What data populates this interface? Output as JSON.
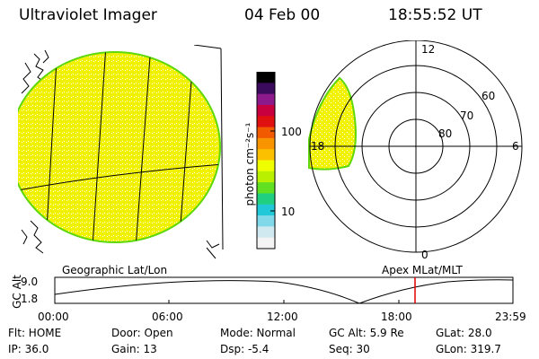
{
  "header": {
    "instrument": "Ultraviolet Imager",
    "date": "04 Feb 00",
    "time": "18:55:52 UT"
  },
  "colorbar": {
    "unit_label": "photon cm⁻²s⁻¹",
    "tick_100": "100",
    "tick_10": "10",
    "colors": [
      "#000000",
      "#3a0a5c",
      "#8c1a8c",
      "#c80040",
      "#e01010",
      "#f25a00",
      "#f79400",
      "#fbc000",
      "#f0ff00",
      "#b8f000",
      "#60e020",
      "#20d080",
      "#20c8d8",
      "#80d8e8",
      "#d0e8f0",
      "#f4f4f4"
    ]
  },
  "polar_plot": {
    "label_top": "12",
    "label_bottom": "0",
    "label_left": "18",
    "label_right": "6",
    "lat_60": "60",
    "lat_70": "70",
    "lat_80": "80"
  },
  "projection_labels": {
    "left": "Geographic Lat/Lon",
    "right": "Apex MLat/MLT"
  },
  "altitude_plot": {
    "axis_label": "GC Alt",
    "y_top": "9.0",
    "y_bottom": "1.8",
    "x_ticks": [
      "00:00",
      "06:00",
      "12:00",
      "18:00",
      "23:59"
    ],
    "marker_color": "#e00000"
  },
  "status": {
    "row1": {
      "flt": "Flt: HOME",
      "door": "Door: Open",
      "mode": "Mode: Normal",
      "gc_alt": "GC Alt: 5.9 Re",
      "glat": "GLat:  28.0"
    },
    "row2": {
      "ip": "IP: 36.0",
      "gain": "Gain: 13",
      "dsp": "Dsp:    -5.4",
      "seq": "Seq: 30",
      "glon": "GLon: 319.7"
    }
  },
  "image_colors": {
    "disk": "#f2f200",
    "disk_edge": "#5fd80a"
  }
}
